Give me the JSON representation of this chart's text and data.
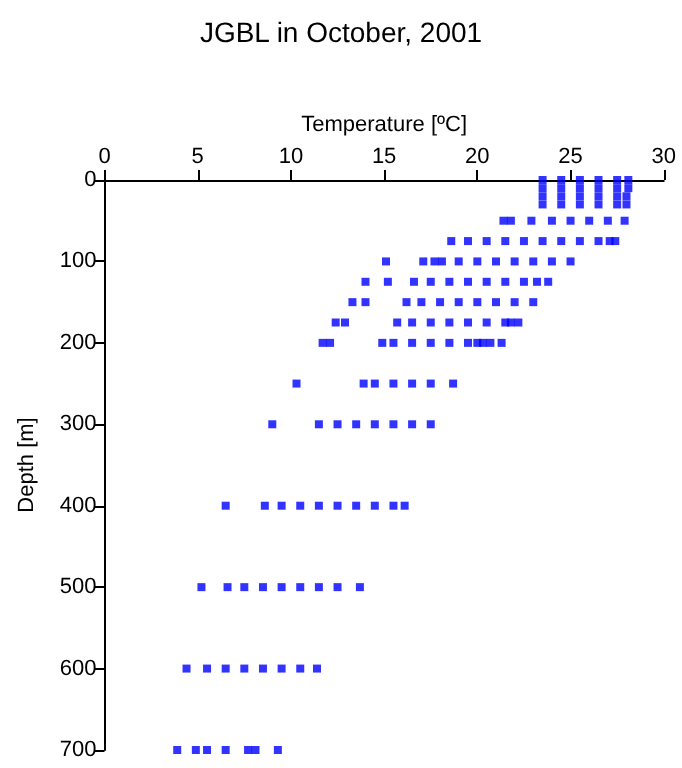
{
  "chart_data": {
    "type": "scatter",
    "title": "JGBL in October, 2001",
    "xlabel": "Temperature [ºC]",
    "ylabel": "Depth [m]",
    "xlim": [
      0,
      30
    ],
    "xticks": [
      0,
      5,
      10,
      15,
      20,
      25,
      30
    ],
    "ylim": [
      700,
      0
    ],
    "yticks": [
      0,
      100,
      200,
      300,
      400,
      500,
      600,
      700
    ],
    "grid": false,
    "marker": "square",
    "series": [
      {
        "color": "#0000ff",
        "x": [
          23.5,
          24.5,
          25.5,
          26.5,
          27.5,
          28.1,
          23.5,
          24.5,
          25.5,
          26.5,
          27.5,
          28.1,
          23.5,
          24.5,
          25.5,
          26.5,
          27.5,
          28.0,
          23.5,
          24.5,
          25.5,
          26.5,
          27.5,
          28.0,
          21.4,
          21.8,
          22.9,
          24,
          25,
          26,
          27,
          27.9,
          18.6,
          19.5,
          20.5,
          21.5,
          22.5,
          23.5,
          24.5,
          25.5,
          26.5,
          27.1,
          27.4,
          15.1,
          17.1,
          17.7,
          18.1,
          19,
          20,
          21,
          22,
          23,
          24,
          25.0,
          14.0,
          15.2,
          16.6,
          17.5,
          18.5,
          19.5,
          20.5,
          21.5,
          22.5,
          23.2,
          23.8,
          13.3,
          14.0,
          16.2,
          17,
          18,
          19,
          20,
          21,
          22,
          23.0,
          12.4,
          12.9,
          15.7,
          16.5,
          17.5,
          18.5,
          19.5,
          20.5,
          21.5,
          21.8,
          22.2,
          11.7,
          12.1,
          14.9,
          15.5,
          16.5,
          17.5,
          18.5,
          19.5,
          20.0,
          20.3,
          20.7,
          21.3,
          10.3,
          13.9,
          14.5,
          15.5,
          16.5,
          17.5,
          18.7,
          9.0,
          11.5,
          12.5,
          13.5,
          14.5,
          15.5,
          16.5,
          17.5,
          6.5,
          8.6,
          9.5,
          10.5,
          11.5,
          12.5,
          13.5,
          14.5,
          15.5,
          16.1,
          5.2,
          6.6,
          7.5,
          8.5,
          9.5,
          10.5,
          11.5,
          12.5,
          13.7,
          4.4,
          5.5,
          6.5,
          7.5,
          8.5,
          9.5,
          10.5,
          11.4,
          3.9,
          4.9,
          5.5,
          6.5,
          7.7,
          8.1,
          9.3
        ],
        "values": [
          0,
          0,
          0,
          0,
          0,
          0,
          10,
          10,
          10,
          10,
          10,
          10,
          20,
          20,
          20,
          20,
          20,
          20,
          30,
          30,
          30,
          30,
          30,
          30,
          50,
          50,
          50,
          50,
          50,
          50,
          50,
          50,
          75,
          75,
          75,
          75,
          75,
          75,
          75,
          75,
          75,
          75,
          75,
          100,
          100,
          100,
          100,
          100,
          100,
          100,
          100,
          100,
          100,
          100,
          125,
          125,
          125,
          125,
          125,
          125,
          125,
          125,
          125,
          125,
          125,
          150,
          150,
          150,
          150,
          150,
          150,
          150,
          150,
          150,
          150,
          175,
          175,
          175,
          175,
          175,
          175,
          175,
          175,
          175,
          175,
          175,
          200,
          200,
          200,
          200,
          200,
          200,
          200,
          200,
          200,
          200,
          200,
          200,
          250,
          250,
          250,
          250,
          250,
          250,
          250,
          300,
          300,
          300,
          300,
          300,
          300,
          300,
          300,
          400,
          400,
          400,
          400,
          400,
          400,
          400,
          400,
          400,
          400,
          500,
          500,
          500,
          500,
          500,
          500,
          500,
          500,
          500,
          600,
          600,
          600,
          600,
          600,
          600,
          600,
          600,
          700,
          700,
          700,
          700,
          700,
          700,
          700
        ]
      }
    ]
  }
}
